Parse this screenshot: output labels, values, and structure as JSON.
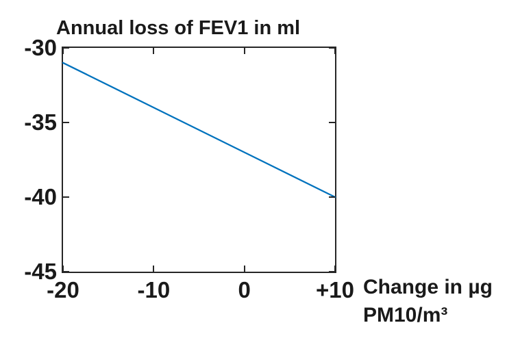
{
  "chart_data": {
    "type": "line",
    "title": "Annual loss of FEV1 in ml",
    "xlabel_lines": [
      "Change in µg",
      "PM10/m³"
    ],
    "ylabel": "",
    "xlim": [
      -20,
      10
    ],
    "ylim": [
      -45,
      -30
    ],
    "x_ticks": [
      {
        "value": -20,
        "label": "-20"
      },
      {
        "value": -10,
        "label": "-10"
      },
      {
        "value": 0,
        "label": "0"
      },
      {
        "value": 10,
        "label": "+10"
      }
    ],
    "y_ticks": [
      {
        "value": -30,
        "label": "-30"
      },
      {
        "value": -35,
        "label": "-35"
      },
      {
        "value": -40,
        "label": "-40"
      },
      {
        "value": -45,
        "label": "-45"
      }
    ],
    "series": [
      {
        "name": "annual-fev1-loss-vs-pm10-change",
        "color": "#0072BD",
        "x": [
          -20,
          10
        ],
        "y": [
          -31,
          -40
        ]
      }
    ],
    "grid": false,
    "box": true,
    "tick_direction": "in",
    "legend": "none",
    "axis_color": "#262626",
    "text_color": "#1a1a1a",
    "background_color": "#ffffff"
  }
}
